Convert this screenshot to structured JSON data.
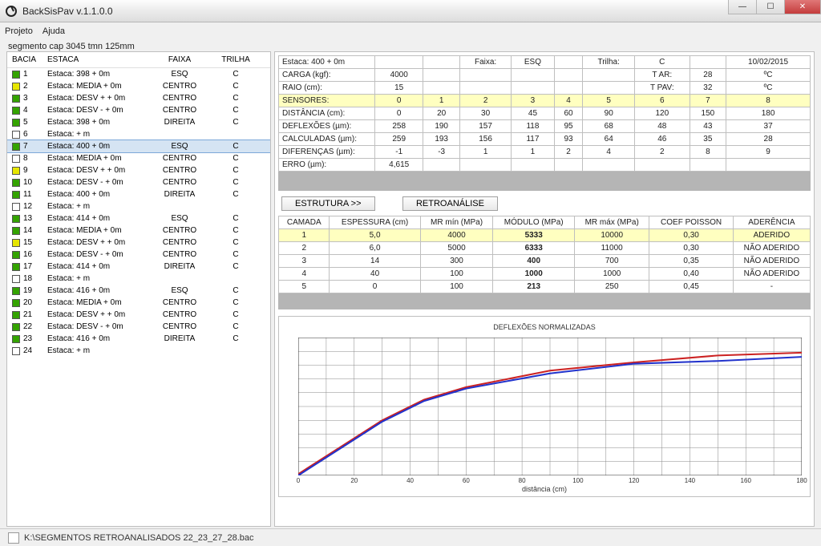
{
  "window": {
    "title": "BackSisPav v.1.1.0.0"
  },
  "menu": {
    "projeto": "Projeto",
    "ajuda": "Ajuda"
  },
  "segment_label": "segmento cap 3045 tmn 125mm",
  "left": {
    "headers": {
      "bacia": "BACIA",
      "estaca": "ESTACA",
      "faixa": "FAIXA",
      "trilha": "TRILHA"
    },
    "rows": [
      {
        "n": "1",
        "estaca": "Estaca: 398 + 0m",
        "faixa": "ESQ",
        "trilha": "C",
        "color": "#34a300"
      },
      {
        "n": "2",
        "estaca": "Estaca: MEDIA + 0m",
        "faixa": "CENTRO",
        "trilha": "C",
        "color": "#e6e600"
      },
      {
        "n": "3",
        "estaca": "Estaca: DESV + + 0m",
        "faixa": "CENTRO",
        "trilha": "C",
        "color": "#34a300"
      },
      {
        "n": "4",
        "estaca": "Estaca: DESV - + 0m",
        "faixa": "CENTRO",
        "trilha": "C",
        "color": "#34a300"
      },
      {
        "n": "5",
        "estaca": "Estaca: 398 + 0m",
        "faixa": "DIREITA",
        "trilha": "C",
        "color": "#34a300"
      },
      {
        "n": "6",
        "estaca": "Estaca: + m",
        "faixa": "",
        "trilha": "",
        "color": "#ffffff"
      },
      {
        "n": "7",
        "estaca": "Estaca: 400 + 0m",
        "faixa": "ESQ",
        "trilha": "C",
        "color": "#34a300",
        "selected": true
      },
      {
        "n": "8",
        "estaca": "Estaca: MEDIA + 0m",
        "faixa": "CENTRO",
        "trilha": "C",
        "color": "#ffffff"
      },
      {
        "n": "9",
        "estaca": "Estaca: DESV + + 0m",
        "faixa": "CENTRO",
        "trilha": "C",
        "color": "#e6e600"
      },
      {
        "n": "10",
        "estaca": "Estaca: DESV - + 0m",
        "faixa": "CENTRO",
        "trilha": "C",
        "color": "#34a300"
      },
      {
        "n": "11",
        "estaca": "Estaca: 400 + 0m",
        "faixa": "DIREITA",
        "trilha": "C",
        "color": "#34a300"
      },
      {
        "n": "12",
        "estaca": "Estaca: + m",
        "faixa": "",
        "trilha": "",
        "color": "#ffffff"
      },
      {
        "n": "13",
        "estaca": "Estaca: 414 + 0m",
        "faixa": "ESQ",
        "trilha": "C",
        "color": "#34a300"
      },
      {
        "n": "14",
        "estaca": "Estaca: MEDIA + 0m",
        "faixa": "CENTRO",
        "trilha": "C",
        "color": "#34a300"
      },
      {
        "n": "15",
        "estaca": "Estaca: DESV + + 0m",
        "faixa": "CENTRO",
        "trilha": "C",
        "color": "#e6e600"
      },
      {
        "n": "16",
        "estaca": "Estaca: DESV - + 0m",
        "faixa": "CENTRO",
        "trilha": "C",
        "color": "#34a300"
      },
      {
        "n": "17",
        "estaca": "Estaca: 414 + 0m",
        "faixa": "DIREITA",
        "trilha": "C",
        "color": "#34a300"
      },
      {
        "n": "18",
        "estaca": "Estaca: + m",
        "faixa": "",
        "trilha": "",
        "color": "#ffffff"
      },
      {
        "n": "19",
        "estaca": "Estaca: 416 + 0m",
        "faixa": "ESQ",
        "trilha": "C",
        "color": "#34a300"
      },
      {
        "n": "20",
        "estaca": "Estaca: MEDIA + 0m",
        "faixa": "CENTRO",
        "trilha": "C",
        "color": "#34a300"
      },
      {
        "n": "21",
        "estaca": "Estaca: DESV + + 0m",
        "faixa": "CENTRO",
        "trilha": "C",
        "color": "#34a300"
      },
      {
        "n": "22",
        "estaca": "Estaca: DESV - + 0m",
        "faixa": "CENTRO",
        "trilha": "C",
        "color": "#34a300"
      },
      {
        "n": "23",
        "estaca": "Estaca: 416 + 0m",
        "faixa": "DIREITA",
        "trilha": "C",
        "color": "#34a300"
      },
      {
        "n": "24",
        "estaca": "Estaca: + m",
        "faixa": "",
        "trilha": "",
        "color": "#ffffff"
      }
    ]
  },
  "top_info": {
    "estaca_label": "Estaca: 400 + 0m",
    "faixa_label": "Faixa:",
    "faixa_val": "ESQ",
    "trilha_label": "Trilha:",
    "trilha_val": "C",
    "date": "10/02/2015",
    "rows": [
      {
        "label": "CARGA (kgf):",
        "v": [
          "4000",
          "",
          "",
          "",
          "",
          "",
          "T AR:",
          "28",
          "ºC"
        ]
      },
      {
        "label": "RAIO (cm):",
        "v": [
          "15",
          "",
          "",
          "",
          "",
          "",
          "T PAV:",
          "32",
          "ºC"
        ]
      }
    ],
    "sensores_label": "SENSORES:",
    "sensores": [
      "0",
      "1",
      "2",
      "3",
      "4",
      "5",
      "6",
      "7",
      "8"
    ],
    "dist_label": "DISTÂNCIA (cm):",
    "dist": [
      "0",
      "20",
      "30",
      "45",
      "60",
      "90",
      "120",
      "150",
      "180"
    ],
    "defl_label": "DEFLEXÕES (µm):",
    "defl": [
      "258",
      "190",
      "157",
      "118",
      "95",
      "68",
      "48",
      "43",
      "37"
    ],
    "calc_label": "CALCULADAS (µm):",
    "calc": [
      "259",
      "193",
      "156",
      "117",
      "93",
      "64",
      "46",
      "35",
      "28"
    ],
    "diff_label": "DIFERENÇAS (µm):",
    "diff": [
      "-1",
      "-3",
      "1",
      "1",
      "2",
      "4",
      "2",
      "8",
      "9"
    ],
    "erro_label": "ERRO (µm):",
    "erro": "4,615"
  },
  "buttons": {
    "estrutura": "ESTRUTURA >>",
    "retro": "RETROANÁLISE"
  },
  "layers": {
    "headers": [
      "CAMADA",
      "ESPESSURA (cm)",
      "MR mín (MPa)",
      "MÓDULO (MPa)",
      "MR máx (MPa)",
      "COEF POISSON",
      "ADERÊNCIA"
    ],
    "rows": [
      {
        "c": [
          "1",
          "5,0",
          "4000",
          "5333",
          "10000",
          "0,30",
          "ADERIDO"
        ],
        "yellow": true
      },
      {
        "c": [
          "2",
          "6,0",
          "5000",
          "6333",
          "11000",
          "0,30",
          "NÃO ADERIDO"
        ]
      },
      {
        "c": [
          "3",
          "14",
          "300",
          "400",
          "700",
          "0,35",
          "NÃO ADERIDO"
        ]
      },
      {
        "c": [
          "4",
          "40",
          "100",
          "1000",
          "1000",
          "0,40",
          "NÃO ADERIDO"
        ]
      },
      {
        "c": [
          "5",
          "0",
          "100",
          "213",
          "250",
          "0,45",
          "-"
        ]
      }
    ]
  },
  "chart": {
    "title": "DEFLEXÕES NORMALIZADAS",
    "xlabel": "distância (cm)",
    "xmin": 0,
    "xmax": 180,
    "xtick": 20,
    "ymin": 0,
    "ymax": 1,
    "grid_color": "#888888",
    "bg": "#ffffff",
    "series": [
      {
        "color": "#cc2222",
        "width": 2,
        "points": [
          [
            0,
            0.01
          ],
          [
            20,
            0.27
          ],
          [
            30,
            0.4
          ],
          [
            45,
            0.55
          ],
          [
            60,
            0.64
          ],
          [
            90,
            0.76
          ],
          [
            120,
            0.82
          ],
          [
            150,
            0.87
          ],
          [
            180,
            0.89
          ]
        ]
      },
      {
        "color": "#2233cc",
        "width": 2,
        "points": [
          [
            0,
            0.0
          ],
          [
            20,
            0.26
          ],
          [
            30,
            0.39
          ],
          [
            45,
            0.54
          ],
          [
            60,
            0.63
          ],
          [
            90,
            0.74
          ],
          [
            120,
            0.81
          ],
          [
            150,
            0.83
          ],
          [
            180,
            0.86
          ]
        ]
      }
    ]
  },
  "status": {
    "path": "K:\\SEGMENTOS RETROANALISADOS 22_23_27_28.bac"
  }
}
